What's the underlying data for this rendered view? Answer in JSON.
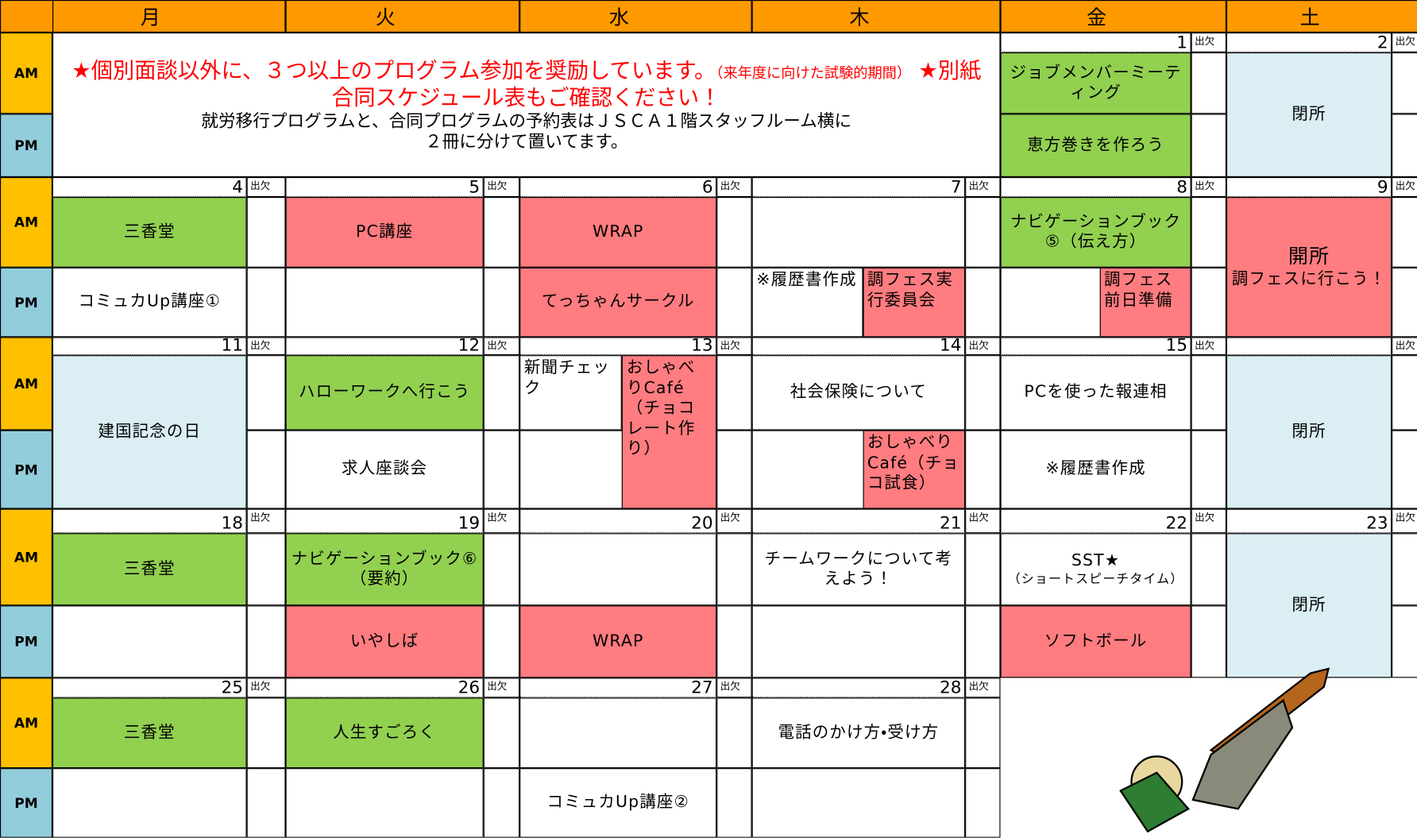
{
  "header": {
    "days": [
      "月",
      "火",
      "水",
      "木",
      "金",
      "土"
    ]
  },
  "slot_labels": [
    "AM",
    "PM"
  ],
  "attendance_label": "出欠",
  "notice": {
    "line1": "★個別面談以外に、３つ以上のプログラム参加を奨励しています。",
    "note": "（来年度に向けた試験的期間）",
    "line2": "★別紙　合同スケジュール表もご確認ください！",
    "body": [
      "就労移行プログラムと、合同プログラムの予約表はＪＳＣＡ１階スタッフルーム横に",
      "２冊に分けて置いてます。"
    ]
  },
  "weeks": [
    {
      "days": [
        null,
        null,
        null,
        null,
        {
          "date": 1,
          "am": [
            {
              "text": "ジョブメンバーミーティング",
              "color": "#92d050"
            }
          ],
          "pm": [
            {
              "text": "恵方巻きを作ろう",
              "color": "#92d050"
            }
          ]
        },
        {
          "date": 2,
          "all": [
            {
              "text": "閉所",
              "color": "#daeef3"
            }
          ]
        }
      ]
    },
    {
      "days": [
        {
          "date": 4,
          "am": [
            {
              "text": "三香堂",
              "color": "#92d050"
            }
          ],
          "pm": [
            {
              "text": "コミュカUp講座①"
            }
          ]
        },
        {
          "date": 5,
          "am": [
            {
              "text": "PC講座",
              "color": "#ff7c80"
            }
          ]
        },
        {
          "date": 6,
          "am": [
            {
              "text": "WRAP",
              "color": "#ff7c80"
            }
          ],
          "pm": [
            {
              "text": "てっちゃんサークル",
              "color": "#ff7c80"
            }
          ]
        },
        {
          "date": 7,
          "pm": [
            {
              "text": "※履歴書作成"
            },
            {
              "text": "調フェス実行委員会",
              "color": "#ff7c80"
            }
          ]
        },
        {
          "date": 8,
          "am": [
            {
              "text": "ナビゲーションブック⑤（伝え方）",
              "color": "#92d050"
            }
          ],
          "pm_right": {
            "text": "調フェス前日準備",
            "color": "#ff7c80"
          }
        },
        {
          "date": 9,
          "all": [
            {
              "text": "開所",
              "note": "調フェスに行こう！",
              "color": "#ff7c80"
            }
          ]
        }
      ]
    },
    {
      "days": [
        {
          "date": 11,
          "all": [
            {
              "text": "建国記念の日",
              "color": "#daeef3"
            }
          ]
        },
        {
          "date": 12,
          "am": [
            {
              "text": "ハローワークへ行こう",
              "color": "#92d050"
            }
          ],
          "pm": [
            {
              "text": "求人座談会"
            }
          ]
        },
        {
          "date": 13,
          "am_left": {
            "text": "新聞チェック"
          },
          "right": {
            "text": "おしゃべりCafé（チョコレート作り）",
            "color": "#ff7c80"
          }
        },
        {
          "date": 14,
          "am": [
            {
              "text": "社会保険について"
            }
          ],
          "pm_right": {
            "text": "おしゃべりCafé（チョコ試食）",
            "color": "#ff7c80"
          }
        },
        {
          "date": 15,
          "am": [
            {
              "text": "PCを使った報連相"
            }
          ],
          "pm": [
            {
              "text": "※履歴書作成"
            }
          ]
        },
        {
          "date": null,
          "all": [
            {
              "text": "閉所",
              "color": "#daeef3"
            }
          ]
        }
      ]
    },
    {
      "days": [
        {
          "date": 18,
          "am": [
            {
              "text": "三香堂",
              "color": "#92d050"
            }
          ]
        },
        {
          "date": 19,
          "am": [
            {
              "text": "ナビゲーションブック⑥（要約）",
              "color": "#92d050"
            }
          ],
          "pm": [
            {
              "text": "いやしば",
              "color": "#ff7c80"
            }
          ]
        },
        {
          "date": 20,
          "pm": [
            {
              "text": "WRAP",
              "color": "#ff7c80"
            }
          ]
        },
        {
          "date": 21,
          "am": [
            {
              "text": "チームワークについて考えよう！"
            }
          ]
        },
        {
          "date": 22,
          "am": [
            {
              "text": "SST★",
              "note": "（ショートスピーチタイム）"
            }
          ],
          "pm": [
            {
              "text": "ソフトボール",
              "color": "#ff7c80"
            }
          ]
        },
        {
          "date": 23,
          "all": [
            {
              "text": "閉所",
              "color": "#daeef3"
            }
          ]
        }
      ]
    },
    {
      "days": [
        {
          "date": 25,
          "am": [
            {
              "text": "三香堂",
              "color": "#92d050"
            }
          ]
        },
        {
          "date": 26,
          "am": [
            {
              "text": "人生すごろく",
              "color": "#92d050"
            }
          ]
        },
        {
          "date": 27,
          "pm": [
            {
              "text": "コミュカUp講座②"
            }
          ]
        },
        {
          "date": 28,
          "am": [
            {
              "text": "電話のかけ方・受け方"
            }
          ]
        },
        null,
        null
      ]
    }
  ]
}
